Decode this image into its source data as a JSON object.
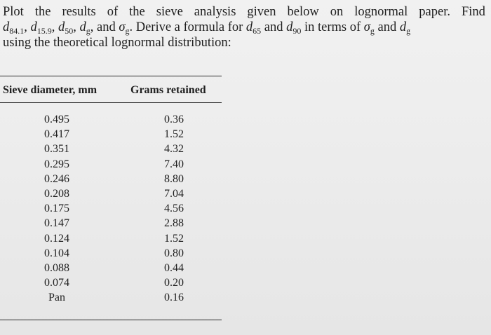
{
  "problem": {
    "line1_words": [
      "Plot",
      "the",
      "results",
      "of",
      "the",
      "sieve",
      "analysis",
      "given",
      "below",
      "on",
      "lognormal",
      "paper.",
      "Find"
    ],
    "line2": {
      "d84": "d",
      "d84_sub": "84.1",
      "sep1": ", ",
      "d15": "d",
      "d15_sub": "15.9",
      "sep2": ", ",
      "d50": "d",
      "d50_sub": "50",
      "sep3": ", ",
      "dg": "d",
      "dg_sub": "g",
      "sep4": ", and ",
      "sig": "σ",
      "sig_sub": "g",
      "text1": ". Derive a formula for ",
      "d65": "d",
      "d65_sub": "65",
      "and1": " and ",
      "d90": "d",
      "d90_sub": "90",
      "text2": " in terms of ",
      "sig2": "σ",
      "sig2_sub": "g",
      "and2": " and ",
      "dg2": "d",
      "dg2_sub": "g"
    },
    "line3": "using the theoretical lognormal distribution:"
  },
  "table": {
    "headers": {
      "diameter": "Sieve diameter, mm",
      "grams": "Grams retained"
    },
    "rows": [
      {
        "diameter": "0.495",
        "grams": "0.36"
      },
      {
        "diameter": "0.417",
        "grams": "1.52"
      },
      {
        "diameter": "0.351",
        "grams": "4.32"
      },
      {
        "diameter": "0.295",
        "grams": "7.40"
      },
      {
        "diameter": "0.246",
        "grams": "8.80"
      },
      {
        "diameter": "0.208",
        "grams": "7.04"
      },
      {
        "diameter": "0.175",
        "grams": "4.56"
      },
      {
        "diameter": "0.147",
        "grams": "2.88"
      },
      {
        "diameter": "0.124",
        "grams": "1.52"
      },
      {
        "diameter": "0.104",
        "grams": "0.80"
      },
      {
        "diameter": "0.088",
        "grams": "0.44"
      },
      {
        "diameter": "0.074",
        "grams": "0.20"
      },
      {
        "diameter": "Pan",
        "grams": "0.16"
      }
    ]
  }
}
